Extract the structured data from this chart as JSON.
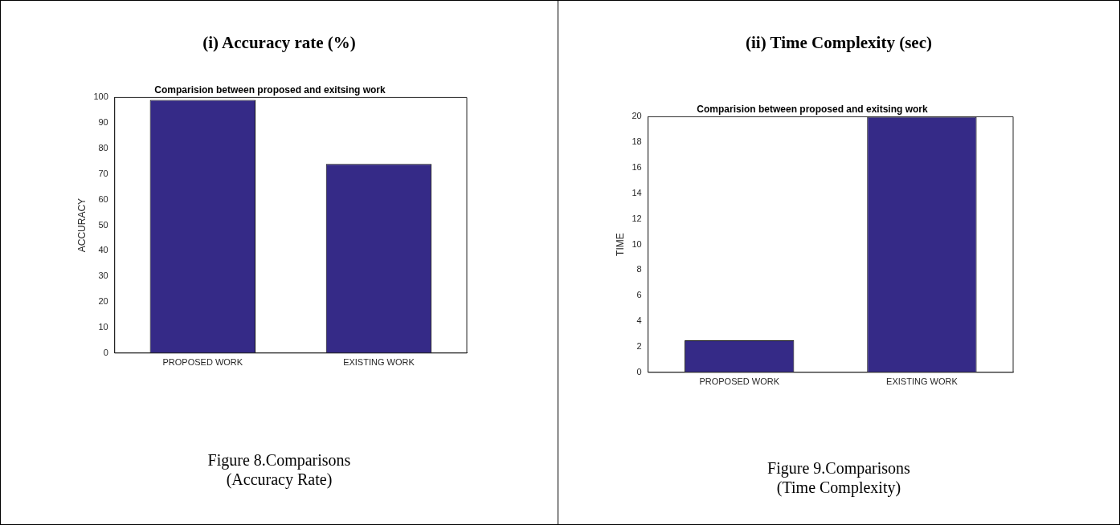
{
  "chart_data": [
    {
      "type": "bar",
      "title": "(i) Accuracy rate (%)",
      "subtitle": "Comparision between proposed and exitsing work",
      "ylabel": "ACCURACY",
      "categories": [
        "PROPOSED WORK",
        "EXISTING WORK"
      ],
      "values": [
        99,
        74
      ],
      "color": "#352a87",
      "ylim": [
        0,
        100
      ],
      "yticks": [
        0,
        10,
        20,
        30,
        40,
        50,
        60,
        70,
        80,
        90,
        100
      ],
      "grid": false,
      "legend": false,
      "annotations": [
        "Figure 8.Comparisons",
        "(Accuracy Rate)"
      ]
    },
    {
      "type": "bar",
      "title": "(ii) Time Complexity (sec)",
      "subtitle": "Comparision between proposed and exitsing work",
      "ylabel": "TIME",
      "categories": [
        "PROPOSED WORK",
        "EXISTING WORK"
      ],
      "values": [
        2.5,
        20
      ],
      "color": "#352a87",
      "ylim": [
        0,
        20
      ],
      "yticks": [
        0,
        2,
        4,
        6,
        8,
        10,
        12,
        14,
        16,
        18,
        20
      ],
      "grid": false,
      "legend": false,
      "annotations": [
        "Figure 9.Comparisons",
        "(Time Complexity)"
      ]
    }
  ]
}
